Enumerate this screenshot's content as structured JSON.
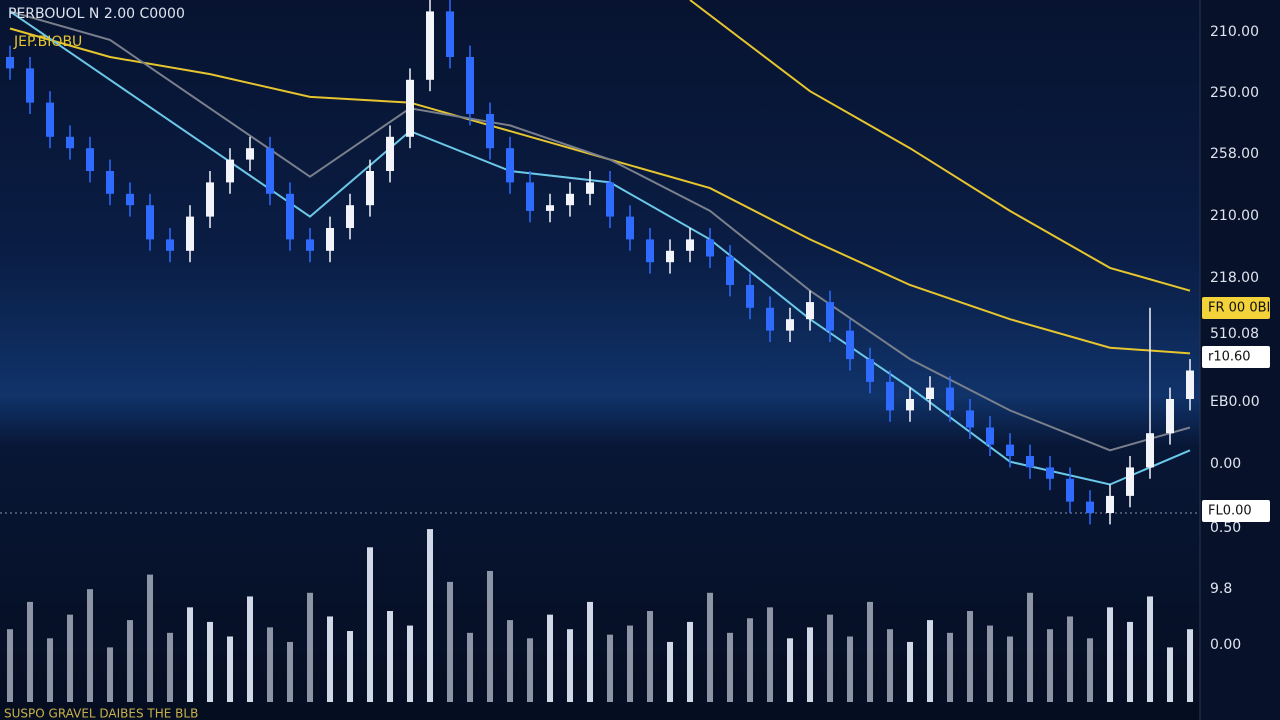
{
  "chart_data": {
    "type": "candlestick",
    "title": "PERBOUOL N 2.00 C0000",
    "subtitle": "JEP.BIOBU",
    "footer": "SUSPO GRAVEL DAIBES THE BLB",
    "open": [
      90,
      88,
      82,
      76,
      74,
      70,
      66,
      64,
      58,
      56,
      62,
      68,
      72,
      74,
      66,
      58,
      56,
      60,
      64,
      70,
      76,
      86,
      98,
      90,
      80,
      74,
      68,
      63,
      64,
      66,
      68,
      62,
      58,
      54,
      56,
      58,
      55,
      50,
      46,
      42,
      44,
      47,
      42,
      37,
      33,
      28,
      30,
      32,
      28,
      25,
      22,
      20,
      18,
      16,
      12,
      10,
      13,
      18,
      24,
      30
    ],
    "high": [
      92,
      90,
      84,
      78,
      76,
      72,
      68,
      66,
      60,
      64,
      70,
      74,
      76,
      76,
      68,
      60,
      62,
      66,
      72,
      78,
      88,
      100,
      100,
      92,
      82,
      76,
      70,
      66,
      68,
      70,
      70,
      64,
      60,
      58,
      60,
      60,
      57,
      52,
      48,
      46,
      49,
      49,
      44,
      39,
      35,
      32,
      34,
      34,
      30,
      27,
      24,
      22,
      20,
      18,
      14,
      15,
      20,
      46,
      32,
      37
    ],
    "low": [
      86,
      80,
      74,
      72,
      68,
      64,
      62,
      56,
      54,
      54,
      60,
      66,
      70,
      64,
      56,
      54,
      54,
      58,
      62,
      68,
      74,
      84,
      88,
      78,
      72,
      66,
      61,
      61,
      62,
      64,
      60,
      56,
      52,
      52,
      54,
      53,
      48,
      44,
      40,
      40,
      42,
      40,
      35,
      31,
      26,
      26,
      28,
      26,
      23,
      20,
      18,
      16,
      14,
      10,
      8,
      8,
      11,
      16,
      22,
      28
    ],
    "close": [
      88,
      82,
      76,
      74,
      70,
      66,
      64,
      58,
      56,
      62,
      68,
      72,
      74,
      66,
      58,
      56,
      60,
      64,
      70,
      76,
      86,
      98,
      90,
      80,
      74,
      68,
      63,
      64,
      66,
      68,
      62,
      58,
      54,
      56,
      58,
      55,
      50,
      46,
      42,
      44,
      47,
      42,
      37,
      33,
      28,
      30,
      32,
      28,
      25,
      22,
      20,
      18,
      16,
      12,
      10,
      13,
      18,
      24,
      30,
      35
    ],
    "up_color": "#f2f4fa",
    "down_color": "#2f6bff",
    "ylim": [
      0,
      100
    ],
    "lines": [
      {
        "color": "#e6c52e",
        "x": [
          0,
          5,
          10,
          15,
          20,
          25,
          30,
          35,
          40,
          45,
          50,
          55,
          59
        ],
        "values": [
          95,
          90,
          87,
          83,
          82,
          77,
          72,
          67,
          58,
          50,
          44,
          39,
          38
        ]
      },
      {
        "color": "#7a7f8c",
        "x": [
          0,
          5,
          10,
          15,
          20,
          25,
          30,
          35,
          40,
          45,
          50,
          55,
          59
        ],
        "values": [
          98,
          93,
          81,
          69,
          81,
          78,
          72,
          63,
          49,
          37,
          28,
          21,
          25
        ]
      },
      {
        "color": "#6cc8e8",
        "x": [
          0,
          5,
          10,
          15,
          20,
          25,
          30,
          35,
          40,
          45,
          50,
          55,
          59
        ],
        "values": [
          98,
          86,
          74,
          62,
          77,
          70,
          68,
          58,
          44,
          32,
          19,
          15,
          21
        ]
      },
      {
        "color": "#e6c52e",
        "x": [
          34,
          40,
          45,
          50,
          55,
          59
        ],
        "values": [
          100,
          84,
          74,
          63,
          53,
          49
        ]
      }
    ],
    "reference_line": 10,
    "volume": [
      40,
      55,
      35,
      48,
      62,
      30,
      45,
      70,
      38,
      52,
      44,
      36,
      58,
      41,
      33,
      60,
      47,
      39,
      85,
      50,
      42,
      95,
      66,
      38,
      72,
      45,
      35,
      48,
      40,
      55,
      37,
      42,
      50,
      33,
      44,
      60,
      38,
      46,
      52,
      35,
      41,
      48,
      36,
      55,
      40,
      33,
      45,
      38,
      50,
      42,
      36,
      60,
      40,
      47,
      35,
      52,
      44,
      58,
      30,
      40
    ],
    "volume_color": "#e8eefc",
    "vlim": [
      0,
      100
    ],
    "axis_labels": [
      "210.00",
      "250.00",
      "258.00",
      "210.00",
      "218.00",
      "510.08",
      "EB0.00",
      "0.00",
      "0.50",
      "9.8",
      "0.00"
    ],
    "box_labels": [
      {
        "label": "FR 00 0BI",
        "color": "#f3d23a"
      },
      {
        "label": "r10.60",
        "color": "#ffffff"
      },
      {
        "label": "FL0.00",
        "color": "#ffffff"
      }
    ]
  }
}
